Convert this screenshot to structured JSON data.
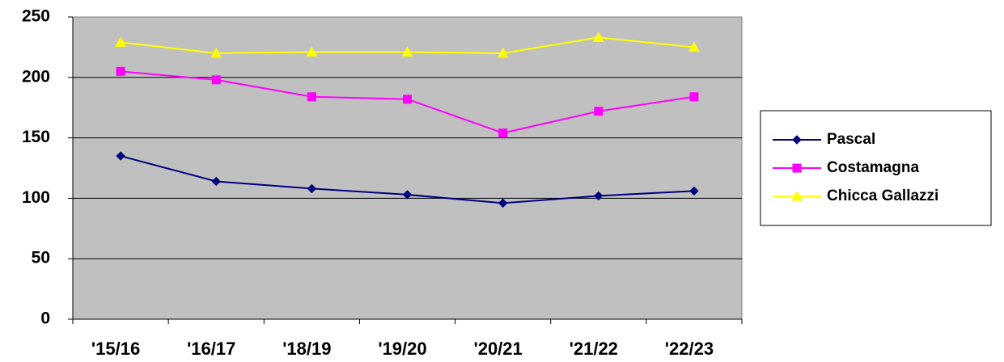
{
  "chart_data": {
    "type": "line",
    "categories": [
      "'15/16",
      "'16/17",
      "'18/19",
      "'19/20",
      "'20/21",
      "'21/22",
      "'22/23"
    ],
    "series": [
      {
        "name": "Pascal",
        "color": "#000080",
        "marker": "diamond",
        "values": [
          135,
          114,
          108,
          103,
          96,
          102,
          106
        ]
      },
      {
        "name": "Costamagna",
        "color": "#ff00ff",
        "marker": "square",
        "values": [
          205,
          198,
          184,
          182,
          154,
          172,
          184
        ]
      },
      {
        "name": "Chicca Gallazzi",
        "color": "#ffff00",
        "marker": "triangle",
        "values": [
          229,
          220,
          221,
          221,
          220,
          233,
          225
        ]
      }
    ],
    "ylim": [
      0,
      250
    ],
    "yticks": [
      0,
      50,
      100,
      150,
      200,
      250
    ],
    "grid": true,
    "legend": "right"
  }
}
